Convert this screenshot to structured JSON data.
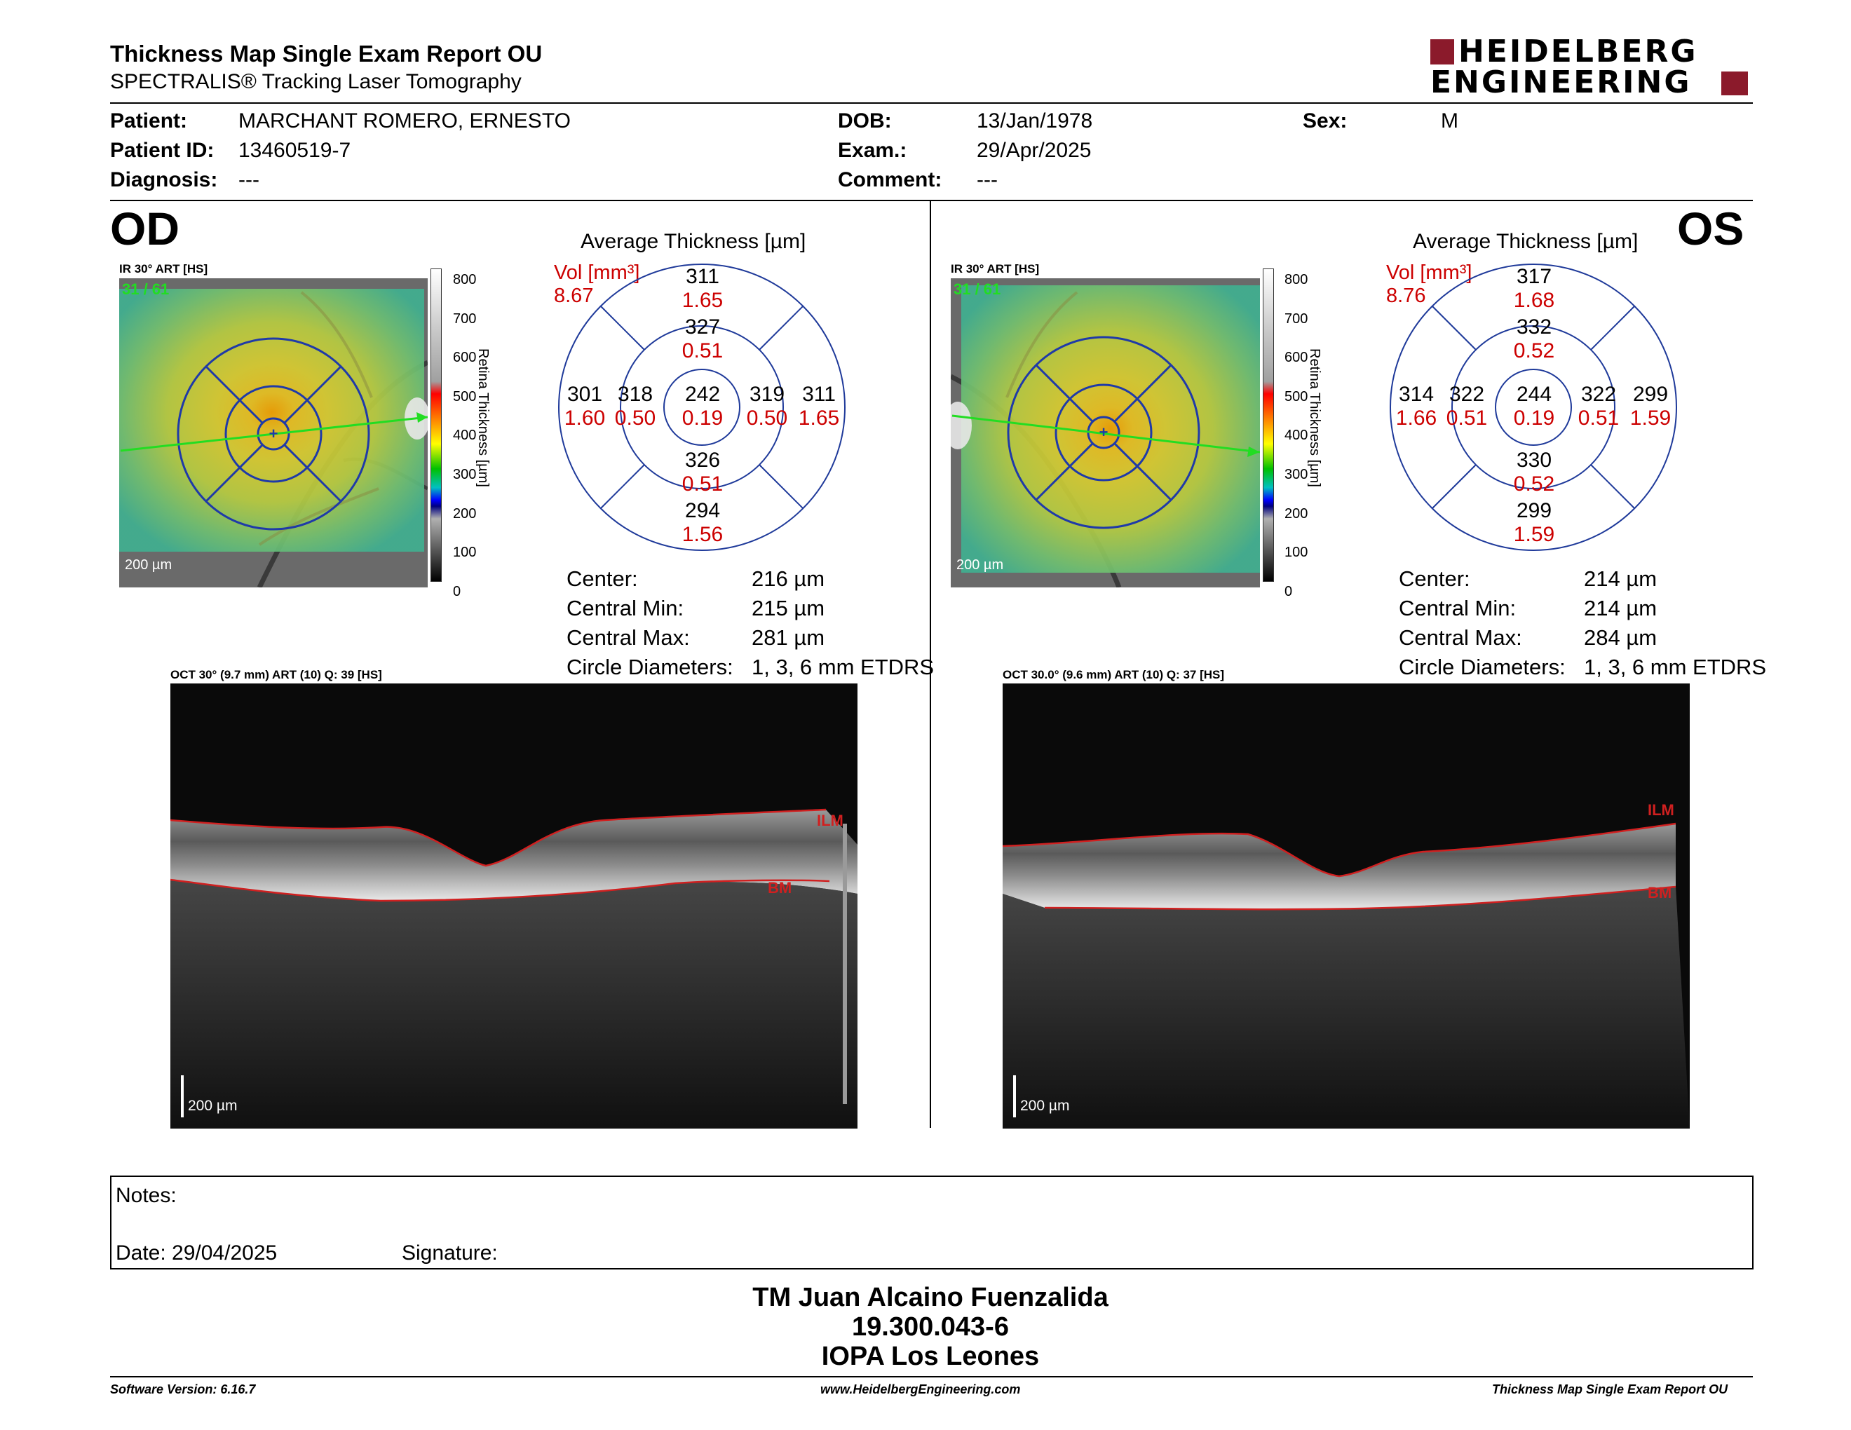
{
  "header": {
    "title": "Thickness Map Single Exam Report OU",
    "subtitle": "SPECTRALIS® Tracking Laser Tomography",
    "logo_line1": "HEIDELBERG",
    "logo_line2": "ENGINEERING"
  },
  "patient": {
    "patient_label": "Patient:",
    "patient_value": "MARCHANT ROMERO, ERNESTO",
    "id_label": "Patient ID:",
    "id_value": "13460519-7",
    "diag_label": "Diagnosis:",
    "diag_value": "---",
    "dob_label": "DOB:",
    "dob_value": "13/Jan/1978",
    "exam_label": "Exam.:",
    "exam_value": "29/Apr/2025",
    "comment_label": "Comment:",
    "comment_value": "---",
    "sex_label": "Sex:",
    "sex_value": "M"
  },
  "colorbar": {
    "ticks": [
      "800",
      "700",
      "600",
      "500",
      "400",
      "300",
      "200",
      "100",
      "0"
    ],
    "label": "Retina Thickness [µm]"
  },
  "od": {
    "eye": "OD",
    "ir_label": "IR 30° ART [HS]",
    "scan_count": "31 / 61",
    "scale": "200 µm",
    "avg_title": "Average Thickness [µm]",
    "vol_label": "Vol [mm³]",
    "vol_total": "8.67",
    "grid": {
      "outer_sup": {
        "t": "311",
        "v": "1.65"
      },
      "inner_sup": {
        "t": "327",
        "v": "0.51"
      },
      "outer_nasal_left": {
        "t": "301",
        "v": "1.60"
      },
      "inner_left": {
        "t": "318",
        "v": "0.50"
      },
      "center": {
        "t": "242",
        "v": "0.19"
      },
      "inner_right": {
        "t": "319",
        "v": "0.50"
      },
      "outer_right": {
        "t": "311",
        "v": "1.65"
      },
      "inner_inf": {
        "t": "326",
        "v": "0.51"
      },
      "outer_inf": {
        "t": "294",
        "v": "1.56"
      }
    },
    "stats": [
      {
        "label": "Center:",
        "value": "216 µm"
      },
      {
        "label": "Central Min:",
        "value": "215 µm"
      },
      {
        "label": "Central Max:",
        "value": "281 µm"
      },
      {
        "label": "Circle Diameters:",
        "value": "1, 3, 6 mm ETDRS"
      }
    ],
    "oct_label": "OCT 30° (9.7 mm) ART (10) Q: 39 [HS]",
    "oct_scale": "200 µm",
    "ilm": "ILM",
    "bm": "BM"
  },
  "os": {
    "eye": "OS",
    "ir_label": "IR 30° ART [HS]",
    "scan_count": "31 / 61",
    "scale": "200 µm",
    "avg_title": "Average Thickness [µm]",
    "vol_label": "Vol [mm³]",
    "vol_total": "8.76",
    "grid": {
      "outer_sup": {
        "t": "317",
        "v": "1.68"
      },
      "inner_sup": {
        "t": "332",
        "v": "0.52"
      },
      "outer_nasal_left": {
        "t": "314",
        "v": "1.66"
      },
      "inner_left": {
        "t": "322",
        "v": "0.51"
      },
      "center": {
        "t": "244",
        "v": "0.19"
      },
      "inner_right": {
        "t": "322",
        "v": "0.51"
      },
      "outer_right": {
        "t": "299",
        "v": "1.59"
      },
      "inner_inf": {
        "t": "330",
        "v": "0.52"
      },
      "outer_inf": {
        "t": "299",
        "v": "1.59"
      }
    },
    "stats": [
      {
        "label": "Center:",
        "value": "214 µm"
      },
      {
        "label": "Central Min:",
        "value": "214 µm"
      },
      {
        "label": "Central Max:",
        "value": "284 µm"
      },
      {
        "label": "Circle Diameters:",
        "value": "1, 3, 6 mm ETDRS"
      }
    ],
    "oct_label": "OCT 30.0° (9.6 mm) ART (10) Q: 37 [HS]",
    "oct_scale": "200 µm",
    "ilm": "ILM",
    "bm": "BM"
  },
  "notes": {
    "notes_label": "Notes:",
    "date_label": "Date: 29/04/2025",
    "signature_label": "Signature:"
  },
  "signoff": {
    "name": "TM Juan Alcaino Fuenzalida",
    "rut": "19.300.043-6",
    "clinic": "IOPA Los Leones"
  },
  "footer": {
    "software": "Software Version: 6.16.7",
    "website": "www.HeidelbergEngineering.com",
    "report": "Thickness Map Single Exam Report OU"
  },
  "colors": {
    "logo": "#8b1a2b",
    "grid_blue": "#1f3a9a",
    "value_red": "#cc0000",
    "scan_green": "#22dd22"
  }
}
